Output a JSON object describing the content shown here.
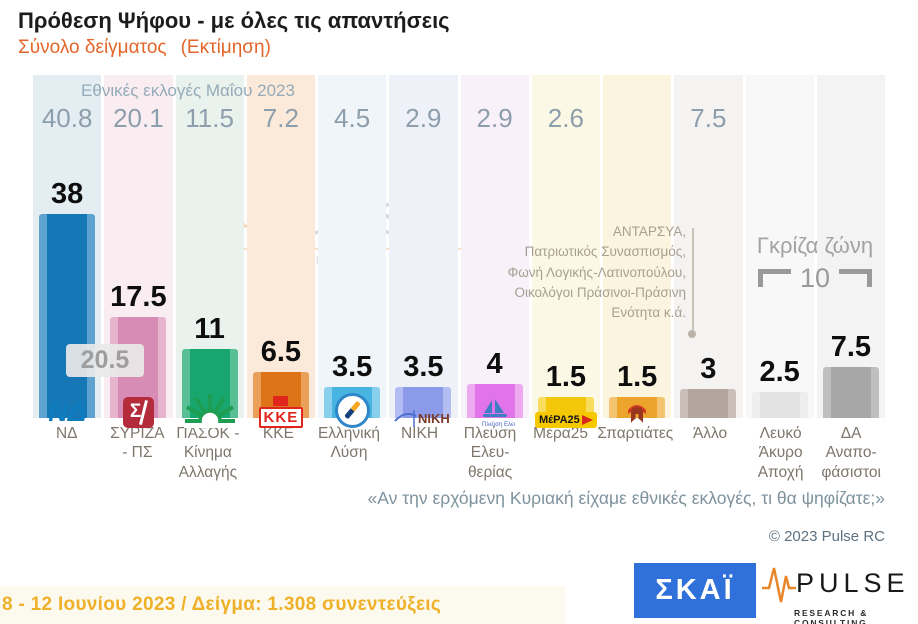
{
  "header": {
    "title": "Πρόθεση Ψήφου - με όλες τις απαντήσεις",
    "subtitle_sample": "Σύνολο δείγματος",
    "subtitle_estimate": "(Εκτίμηση)"
  },
  "chart": {
    "elections_header": "Εθνικές εκλογές Μαΐου 2023",
    "lead_box": "20.5",
    "gray_zone": {
      "label": "Γκρίζα ζώνη",
      "value": "10"
    },
    "other_annotation": "ΑΝΤΑΡΣΥΑ,\nΠατριωτικός Συνασπισμός,\nΦωνή Λογικής-Λατινοπούλου,\nΟικολόγοι Πράσινοι-Πράσινη\nΕνότητα κ.ά.",
    "parties": [
      {
        "name": "nd",
        "label": "ΝΔ",
        "prev": "40.8",
        "value": 38,
        "value_label": "38",
        "bar_color": "#1577b6",
        "bar_light": "#5ea3cf",
        "tint": "#e3edf2"
      },
      {
        "name": "syriza",
        "label": "ΣΥΡΙΖΑ\n- ΠΣ",
        "prev": "20.1",
        "value": 17.5,
        "value_label": "17.5",
        "bar_color": "#d68cb4",
        "bar_light": "#e6b5cd",
        "tint": "#f9edf2"
      },
      {
        "name": "pasok",
        "label": "ΠΑΣΟΚ -\nΚίνημα\nΑλλαγής",
        "prev": "11.5",
        "value": 11,
        "value_label": "11",
        "bar_color": "#17a66d",
        "bar_light": "#57bf93",
        "tint": "#e9f2ed"
      },
      {
        "name": "kke",
        "label": "ΚΚΕ",
        "prev": "7.2",
        "value": 6.5,
        "value_label": "6.5",
        "bar_color": "#dd7418",
        "bar_light": "#eaa058",
        "tint": "#fbead9"
      },
      {
        "name": "elliniki-lysi",
        "label": "Ελληνική\nΛύση",
        "prev": "4.5",
        "value": 3.5,
        "value_label": "3.5",
        "bar_color": "#48b4e2",
        "bar_light": "#88cfec",
        "tint": "#eff5f9"
      },
      {
        "name": "niki",
        "label": "ΝΙΚΗ",
        "prev": "2.9",
        "value": 3.5,
        "value_label": "3.5",
        "bar_color": "#8b9ae9",
        "bar_light": "#b3bdf2",
        "tint": "#eff1f9"
      },
      {
        "name": "plefsi",
        "label": "Πλεύση\nΕλευ-\nθερίας",
        "prev": "2.9",
        "value": 4,
        "value_label": "4",
        "bar_color": "#e274ea",
        "bar_light": "#edaaf1",
        "tint": "#f9f1fa"
      },
      {
        "name": "mera25",
        "label": "Μέρα25",
        "prev": "2.6",
        "value": 1.5,
        "value_label": "1.5",
        "bar_color": "#f4c70a",
        "bar_light": "#f8dc5e",
        "tint": "#fcf8e6"
      },
      {
        "name": "spartiates",
        "label": "Σπαρτιάτες",
        "prev": "",
        "value": 1.5,
        "value_label": "1.5",
        "bar_color": "#eca42c",
        "bar_light": "#f3c470",
        "tint": "#fbf5df"
      },
      {
        "name": "allo",
        "label": "Άλλο",
        "prev": "7.5",
        "value": 3,
        "value_label": "3",
        "bar_color": "#b4a69d",
        "bar_light": "#c9bfb8",
        "tint": "#f5f3f1"
      },
      {
        "name": "lefko",
        "label": "Λευκό\nΆκυρο\nΑποχή",
        "prev": "",
        "value": 2.5,
        "value_label": "2.5",
        "bar_color": "#e3e3e3",
        "bar_light": "#eeeeee",
        "tint": "#f8f8f8"
      },
      {
        "name": "da",
        "label": "ΔΑ\nΑναπο-\nφάσιστοι",
        "prev": "",
        "value": 7.5,
        "value_label": "7.5",
        "bar_color": "#a7a7a7",
        "bar_light": "#bfbfbf",
        "tint": "#f3f3f3"
      }
    ]
  },
  "watermark": {
    "title": "PULSE",
    "subtitle": "RESEARCH & CONSULTING"
  },
  "question": "«Αν την ερχόμενη Κυριακή είχαμε εθνικές εκλογές, τι θα ψηφίζατε;»",
  "copyright": "© 2023 Pulse RC",
  "footer": {
    "fieldwork": "8 - 12  Ιουνίου  2023  /  Δείγμα:  1.308 συνεντεύξεις",
    "skai": "ΣΚΑΪ",
    "pulse_title": "PULSE",
    "pulse_subtitle": "RESEARCH & CONSULTING"
  },
  "chart_data": {
    "type": "bar",
    "title": "Πρόθεση Ψήφου - με όλες τις απαντήσεις",
    "subtitle": "Σύνολο δείγματος (Εκτίμηση)",
    "categories": [
      "ΝΔ",
      "ΣΥΡΙΖΑ - ΠΣ",
      "ΠΑΣΟΚ - Κίνημα Αλλαγής",
      "ΚΚΕ",
      "Ελληνική Λύση",
      "ΝΙΚΗ",
      "Πλεύση Ελευθερίας",
      "Μέρα25",
      "Σπαρτιάτες",
      "Άλλο",
      "Λευκό Άκυρο Αποχή",
      "ΔΑ Αναποφάσιστοι"
    ],
    "series": [
      {
        "name": "Εκτίμηση (8-12 Ιουνίου 2023)",
        "values": [
          38,
          17.5,
          11,
          6.5,
          3.5,
          3.5,
          4,
          1.5,
          1.5,
          3,
          2.5,
          7.5
        ]
      },
      {
        "name": "Εθνικές εκλογές Μαΐου 2023",
        "values": [
          40.8,
          20.1,
          11.5,
          7.2,
          4.5,
          2.9,
          2.9,
          2.6,
          null,
          7.5,
          null,
          null
        ]
      }
    ],
    "annotations": {
      "nd_lead": 20.5,
      "gray_zone_total": 10,
      "allo_note": "ΑΝΤΑΡΣΥΑ, Πατριωτικός Συνασπισμός, Φωνή Λογικής-Λατινοπούλου, Οικολόγοι Πράσινοι-Πράσινη Ενότητα κ.ά.",
      "question": "«Αν την ερχόμενη Κυριακή είχαμε εθνικές εκλογές, τι θα ψηφίζατε;»"
    },
    "legend_position": "none",
    "grid": false,
    "ylim": [
      0,
      45
    ]
  }
}
